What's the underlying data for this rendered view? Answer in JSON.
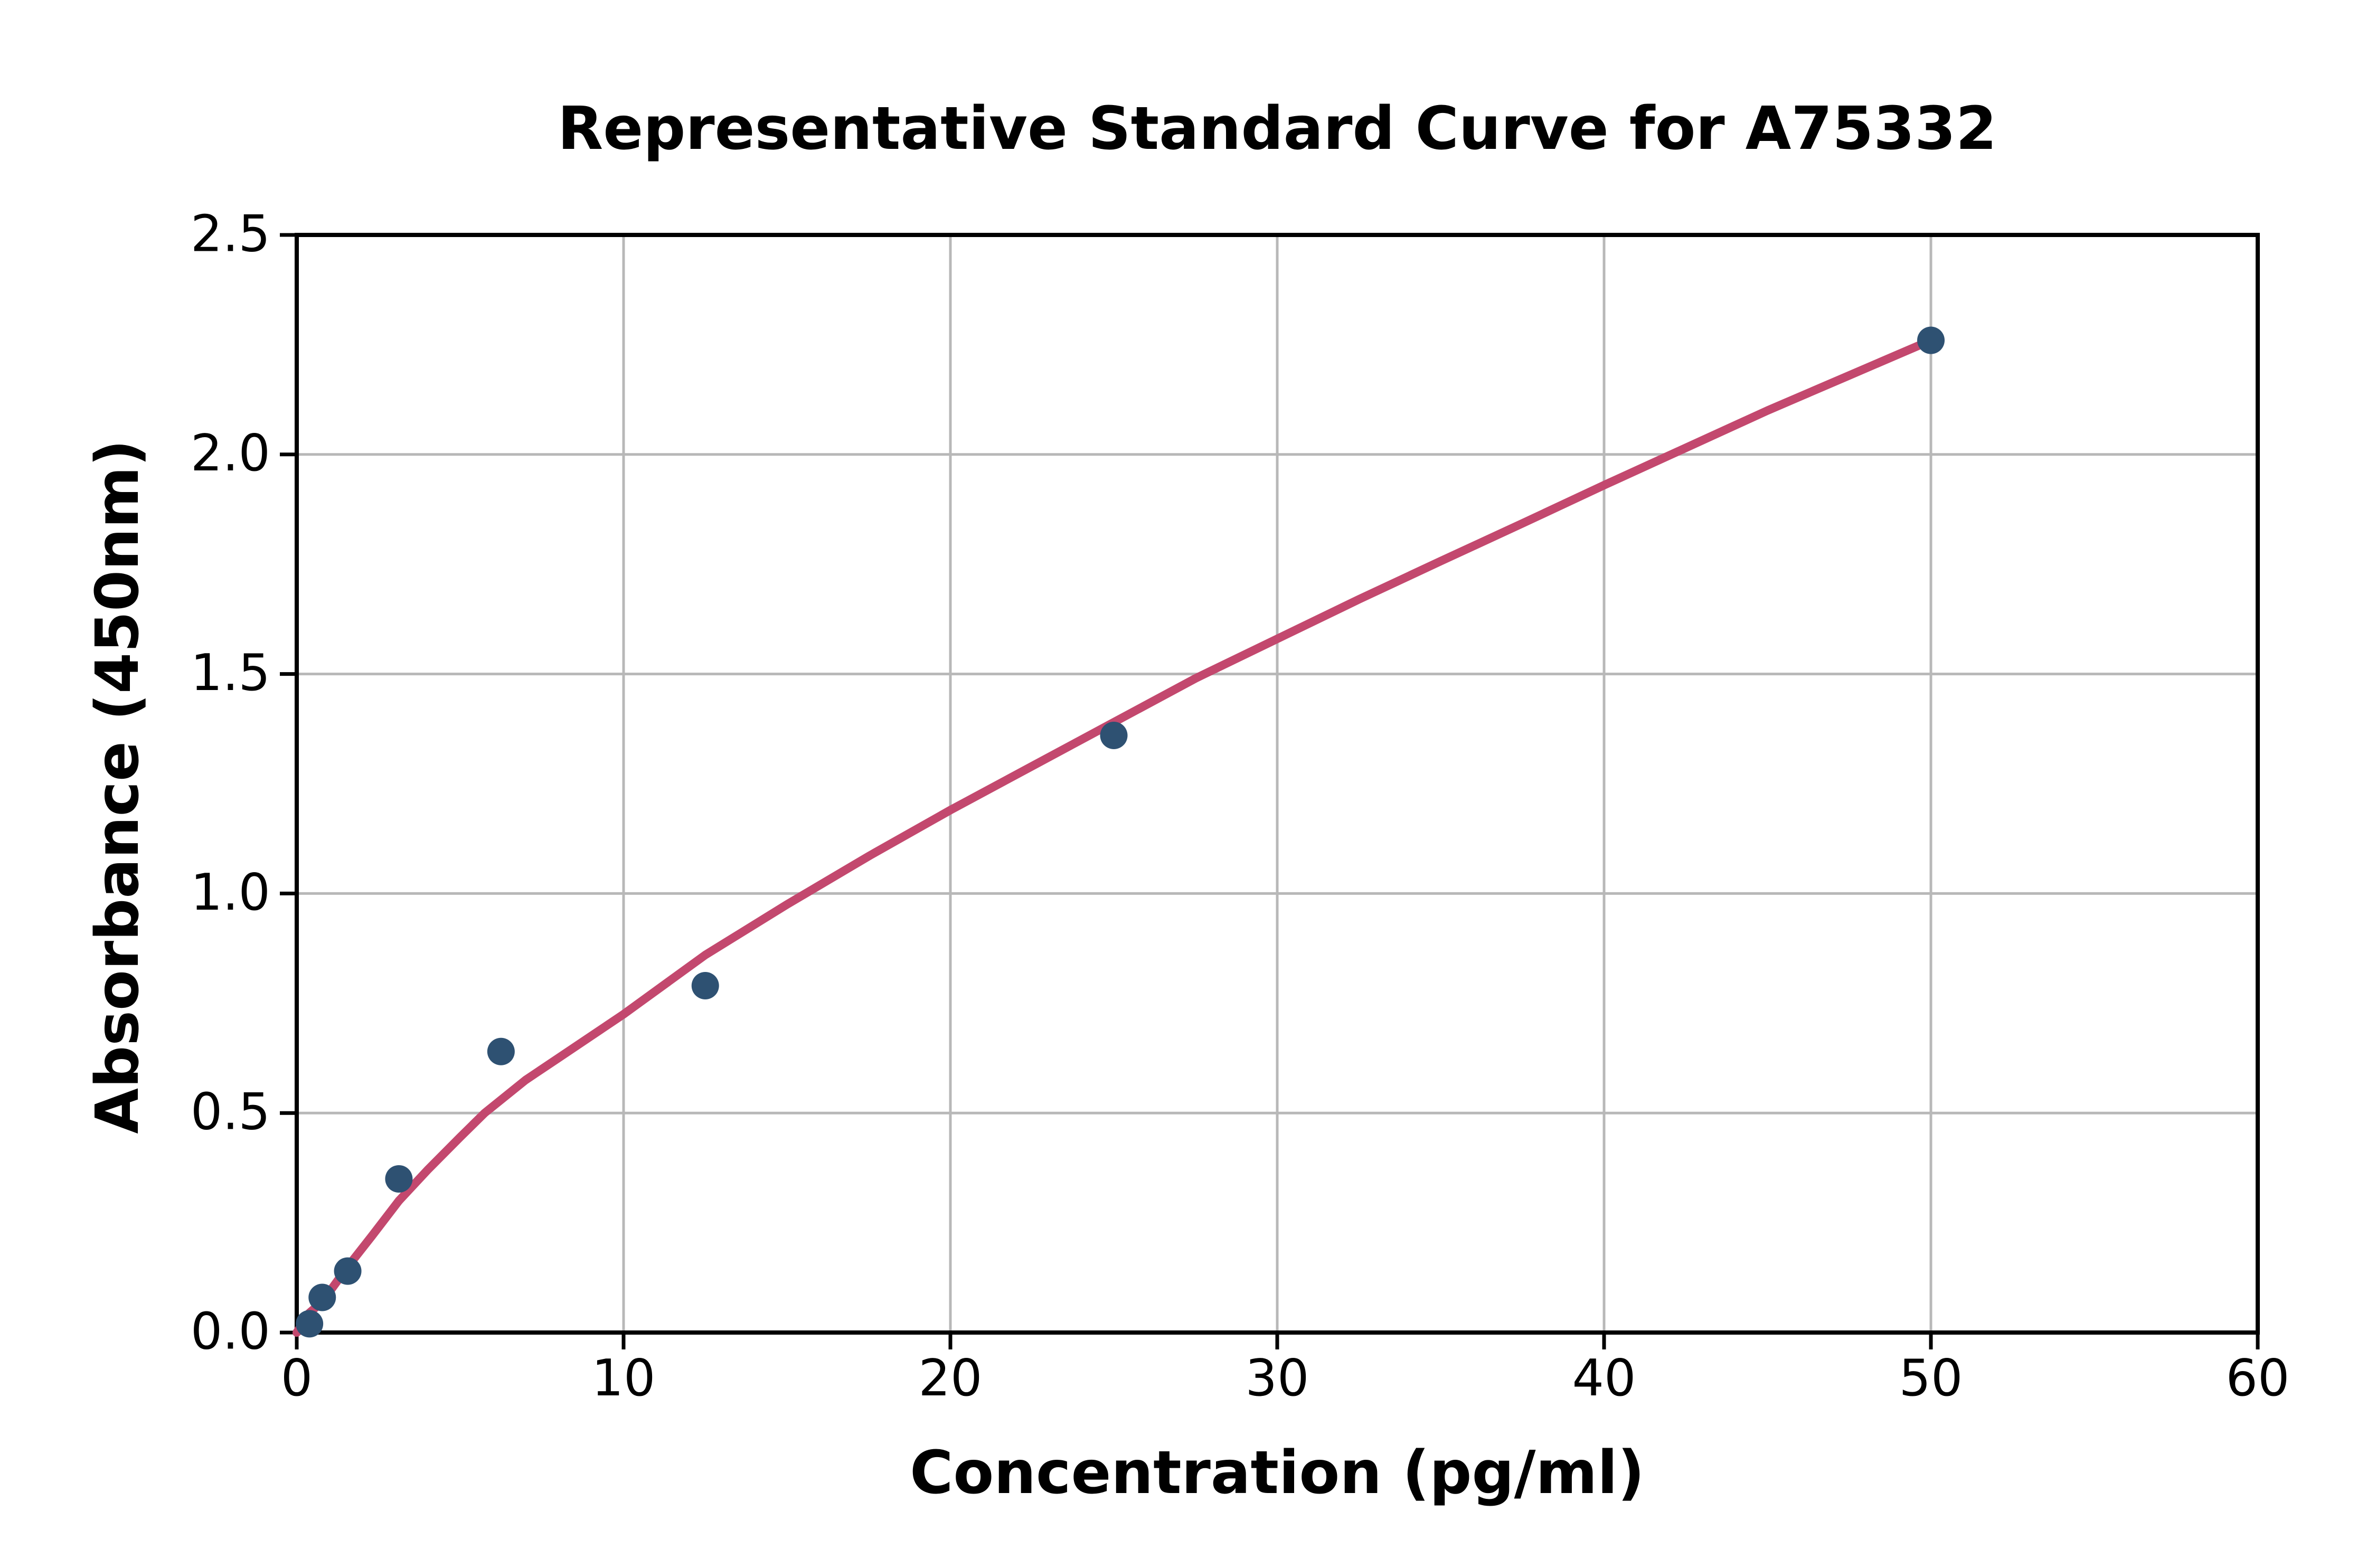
{
  "chart_data": {
    "type": "scatter",
    "title": "Representative Standard Curve for A75332",
    "xlabel": "Concentration (pg/ml)",
    "ylabel": "Absorbance (450nm)",
    "xlim": [
      0,
      60
    ],
    "ylim": [
      0,
      2.5
    ],
    "grid": true,
    "legend": "none",
    "x_ticks": [
      0,
      10,
      20,
      30,
      40,
      50,
      60
    ],
    "x_tick_labels": [
      "0",
      "10",
      "20",
      "30",
      "40",
      "50",
      "60"
    ],
    "y_ticks": [
      0,
      0.5,
      1,
      1.5,
      2,
      2.5
    ],
    "y_tick_labels": [
      "0.0",
      "0.5",
      "1.0",
      "1.5",
      "2.0",
      "2.5"
    ],
    "series": [
      {
        "name": "standard-points",
        "type": "scatter",
        "points": [
          [
            0.39,
            0.02
          ],
          [
            0.78,
            0.08
          ],
          [
            1.56,
            0.14
          ],
          [
            3.125,
            0.35
          ],
          [
            6.25,
            0.64
          ],
          [
            12.5,
            0.79
          ],
          [
            25,
            1.36
          ],
          [
            50,
            2.26
          ]
        ]
      },
      {
        "name": "fit-curve",
        "type": "line",
        "points": [
          [
            0,
            0
          ],
          [
            0.39,
            0.045
          ],
          [
            0.78,
            0.07
          ],
          [
            1.56,
            0.15
          ],
          [
            2.3,
            0.22
          ],
          [
            3.125,
            0.3
          ],
          [
            4,
            0.37
          ],
          [
            5,
            0.445
          ],
          [
            5.75,
            0.5
          ],
          [
            7,
            0.575
          ],
          [
            8,
            0.625
          ],
          [
            10,
            0.725
          ],
          [
            12.5,
            0.86
          ],
          [
            15,
            0.975
          ],
          [
            17.5,
            1.085
          ],
          [
            20,
            1.19
          ],
          [
            22.5,
            1.29
          ],
          [
            25,
            1.39
          ],
          [
            27.5,
            1.49
          ],
          [
            30,
            1.58
          ],
          [
            32.5,
            1.67
          ],
          [
            35,
            1.757
          ],
          [
            37.5,
            1.843
          ],
          [
            40,
            1.93
          ],
          [
            42.5,
            2.015
          ],
          [
            45,
            2.1
          ],
          [
            47.5,
            2.18
          ],
          [
            50,
            2.26
          ]
        ]
      }
    ],
    "colors": {
      "point": "#2e5172",
      "curve": "#c3486e",
      "grid": "#b8b8b8",
      "axis": "#000000",
      "tick_label": "#000000",
      "background": "#ffffff"
    }
  }
}
